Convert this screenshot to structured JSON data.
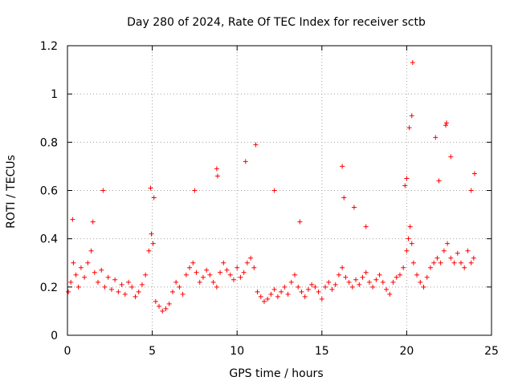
{
  "chart_data": {
    "type": "scatter",
    "title": "Day 280 of 2024, Rate Of TEC Index for receiver sctb",
    "xlabel": "GPS time / hours",
    "ylabel": "ROTI / TECUs",
    "xlim": [
      0,
      25
    ],
    "ylim": [
      0,
      1.2
    ],
    "x_ticks": [
      0,
      5,
      10,
      15,
      20,
      25
    ],
    "x_tick_labels": [
      "0",
      "5",
      "10",
      "15",
      "20",
      "25"
    ],
    "y_ticks": [
      0,
      0.2,
      0.4,
      0.6,
      0.8,
      1.0,
      1.2
    ],
    "y_tick_labels": [
      "0",
      "0.2",
      "0.4",
      "0.6",
      "0.8",
      "1",
      "1.2"
    ],
    "grid": true,
    "marker": "+",
    "color": "#ff0000",
    "series": [
      {
        "name": "ROTI",
        "x": [
          0.05,
          0.2,
          0.35,
          0.5,
          0.65,
          0.8,
          1.0,
          1.2,
          1.4,
          1.6,
          1.8,
          2.0,
          2.2,
          2.4,
          2.6,
          2.8,
          3.0,
          3.2,
          3.4,
          3.6,
          3.8,
          4.0,
          4.2,
          4.4,
          4.6,
          4.8,
          4.95,
          5.05,
          5.2,
          5.4,
          5.6,
          5.8,
          6.0,
          6.2,
          6.4,
          6.6,
          6.8,
          7.0,
          7.2,
          7.4,
          7.6,
          7.8,
          8.0,
          8.2,
          8.4,
          8.6,
          8.8,
          9.0,
          9.2,
          9.4,
          9.6,
          9.8,
          10.0,
          10.2,
          10.4,
          10.6,
          10.8,
          11.0,
          11.2,
          11.4,
          11.6,
          11.8,
          12.0,
          12.2,
          12.4,
          12.6,
          12.8,
          13.0,
          13.2,
          13.4,
          13.6,
          13.8,
          14.0,
          14.2,
          14.4,
          14.6,
          14.8,
          15.0,
          15.2,
          15.4,
          15.6,
          15.8,
          16.0,
          16.2,
          16.4,
          16.6,
          16.8,
          17.0,
          17.2,
          17.4,
          17.6,
          17.8,
          18.0,
          18.2,
          18.4,
          18.6,
          18.8,
          19.0,
          19.2,
          19.4,
          19.6,
          19.8,
          20.0,
          20.1,
          20.2,
          20.3,
          20.4,
          20.6,
          20.8,
          21.0,
          21.2,
          21.4,
          21.6,
          21.8,
          22.0,
          22.2,
          22.4,
          22.6,
          22.8,
          23.0,
          23.2,
          23.4,
          23.6,
          23.8,
          23.95,
          0.3,
          1.5,
          2.1,
          4.9,
          5.1,
          7.5,
          8.8,
          8.85,
          10.5,
          11.1,
          12.2,
          13.7,
          16.2,
          16.3,
          16.9,
          17.6,
          19.9,
          20.0,
          20.15,
          20.3,
          20.35,
          21.7,
          21.9,
          22.3,
          22.35,
          22.6,
          23.8,
          24.0
        ],
        "y": [
          0.18,
          0.22,
          0.3,
          0.25,
          0.2,
          0.28,
          0.24,
          0.3,
          0.35,
          0.26,
          0.22,
          0.27,
          0.2,
          0.24,
          0.19,
          0.23,
          0.18,
          0.21,
          0.17,
          0.22,
          0.2,
          0.16,
          0.18,
          0.21,
          0.25,
          0.35,
          0.42,
          0.38,
          0.14,
          0.12,
          0.1,
          0.11,
          0.13,
          0.18,
          0.22,
          0.2,
          0.17,
          0.25,
          0.28,
          0.3,
          0.26,
          0.22,
          0.24,
          0.27,
          0.25,
          0.22,
          0.2,
          0.26,
          0.3,
          0.27,
          0.25,
          0.23,
          0.28,
          0.24,
          0.26,
          0.3,
          0.32,
          0.28,
          0.18,
          0.16,
          0.14,
          0.15,
          0.17,
          0.19,
          0.16,
          0.18,
          0.2,
          0.17,
          0.22,
          0.25,
          0.2,
          0.18,
          0.16,
          0.19,
          0.21,
          0.2,
          0.18,
          0.15,
          0.2,
          0.22,
          0.19,
          0.21,
          0.25,
          0.28,
          0.24,
          0.22,
          0.2,
          0.23,
          0.21,
          0.24,
          0.26,
          0.22,
          0.2,
          0.23,
          0.25,
          0.22,
          0.19,
          0.17,
          0.22,
          0.24,
          0.25,
          0.28,
          0.35,
          0.4,
          0.45,
          0.38,
          0.3,
          0.25,
          0.22,
          0.2,
          0.24,
          0.28,
          0.3,
          0.32,
          0.3,
          0.35,
          0.38,
          0.32,
          0.3,
          0.34,
          0.3,
          0.28,
          0.35,
          0.3,
          0.32,
          0.48,
          0.47,
          0.6,
          0.61,
          0.57,
          0.6,
          0.69,
          0.66,
          0.72,
          0.79,
          0.6,
          0.47,
          0.7,
          0.57,
          0.53,
          0.45,
          0.62,
          0.65,
          0.86,
          0.91,
          1.13,
          0.82,
          0.64,
          0.87,
          0.88,
          0.74,
          0.6,
          0.67
        ]
      }
    ]
  }
}
